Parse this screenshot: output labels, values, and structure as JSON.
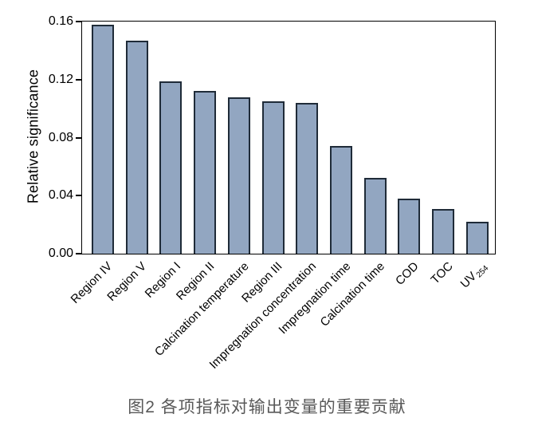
{
  "figure": {
    "caption": "图2  各项指标对输出变量的重要贡献"
  },
  "chart_data": {
    "type": "bar",
    "title": "",
    "xlabel": "",
    "ylabel": "Relative significance",
    "ylim": [
      0,
      0.16
    ],
    "ytick_values": [
      0,
      0.04,
      0.08,
      0.12,
      0.16
    ],
    "ytick_labels": [
      "0.00",
      "0.04",
      "0.08",
      "0.12",
      "0.16"
    ],
    "categories": [
      "Region IV",
      "Region V",
      "Region I",
      "Region II",
      "Calcination temperature",
      "Region III",
      "Impregnation concentration",
      "Impregnation time",
      "Calcination time",
      "COD",
      "TOC",
      {
        "text": "UV",
        "sub": "254"
      }
    ],
    "values": [
      0.158,
      0.147,
      0.119,
      0.112,
      0.108,
      0.105,
      0.104,
      0.074,
      0.052,
      0.038,
      0.031,
      0.022
    ],
    "grid": false,
    "legend": false,
    "bar_color": "#92a6c1",
    "bar_edge_color": "#1f2b38",
    "axis_color": "#000000",
    "caption_color": "#595959"
  }
}
